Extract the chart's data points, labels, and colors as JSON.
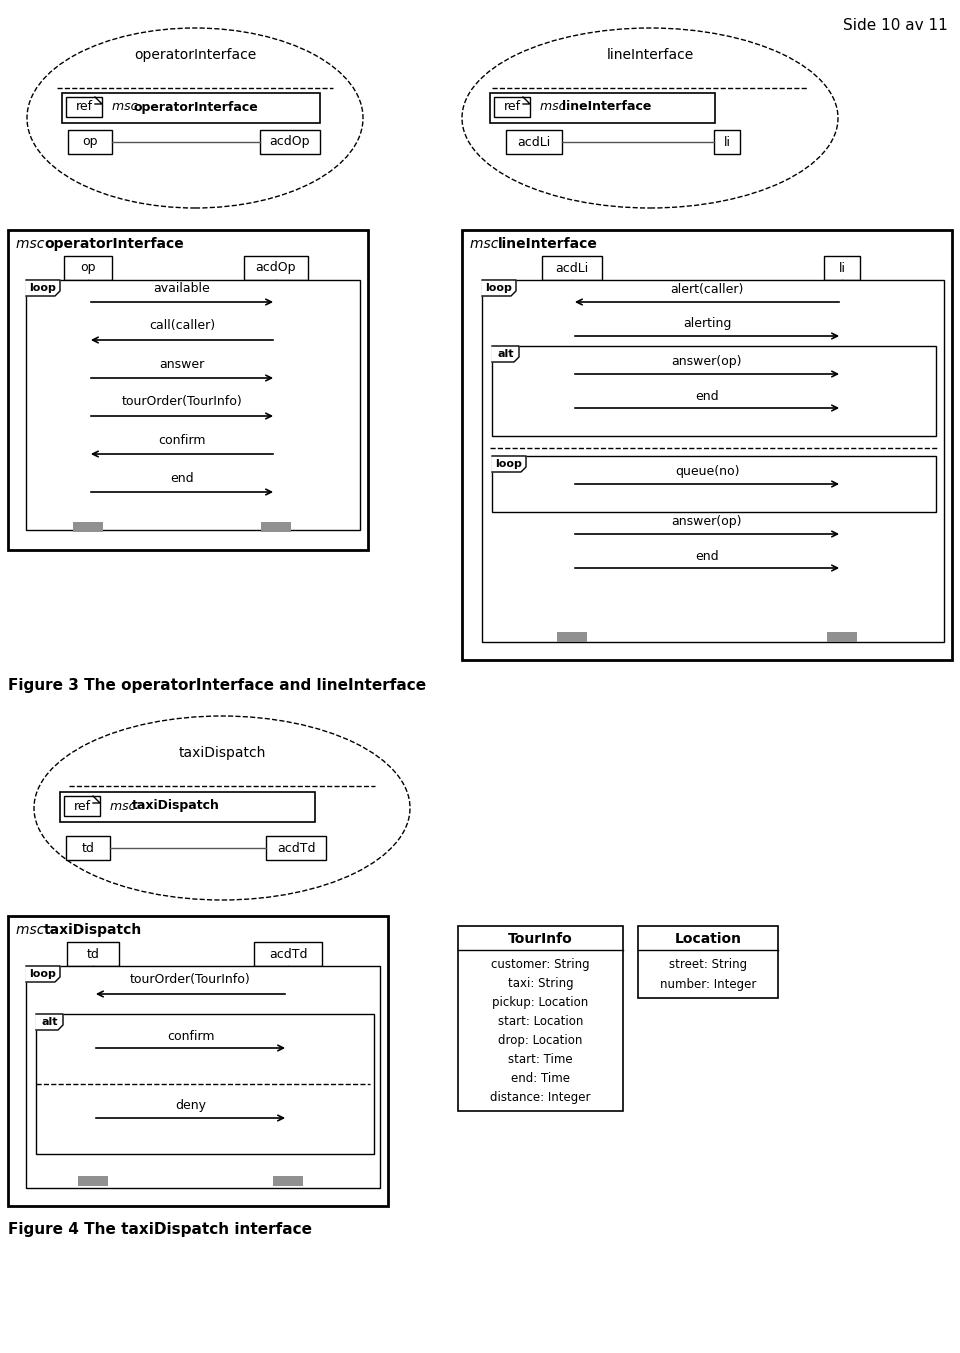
{
  "background_color": "#ffffff",
  "page_label": "Side 10 av 11",
  "fig3_label": "Figure 3 The operatorInterface and lineInterface",
  "fig4_label": "Figure 4 The taxiDispatch interface"
}
